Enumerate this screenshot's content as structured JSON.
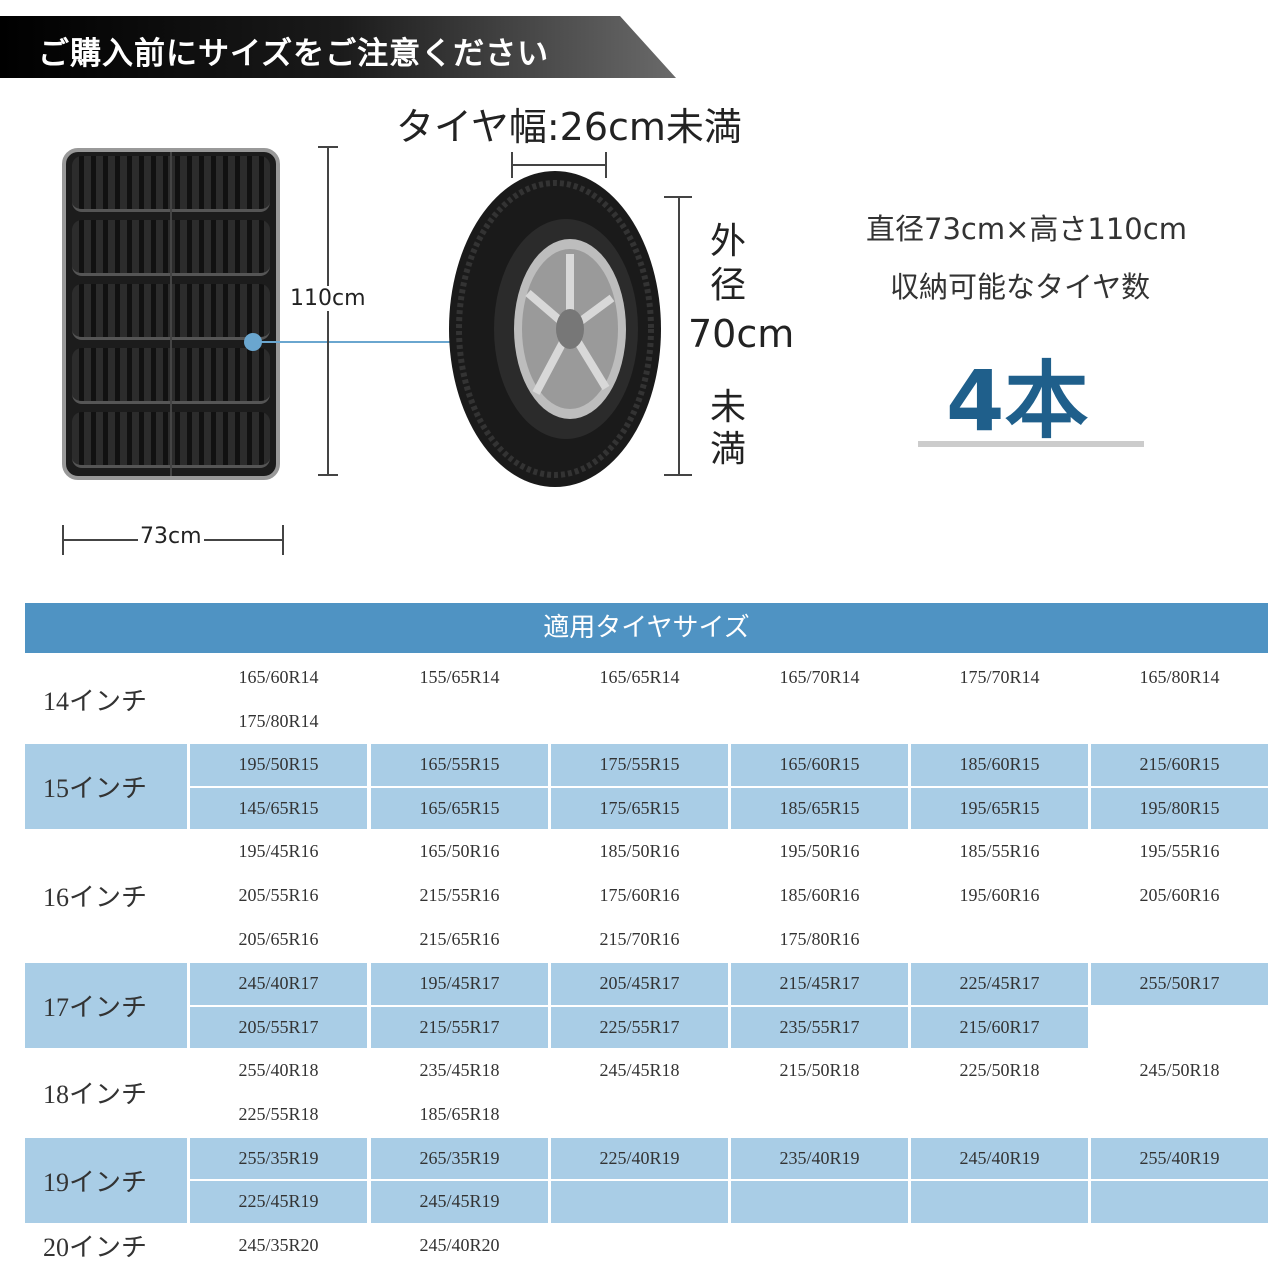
{
  "banner": {
    "text": "ご購入前にサイズをご注意ください"
  },
  "dims": {
    "bag_height": "110cm",
    "bag_width": "73cm",
    "tire_width": "タイヤ幅:26cm未満",
    "outer_label_1": "外",
    "outer_label_2": "径",
    "outer_value": "70cm",
    "outer_label_3": "未",
    "outer_label_4": "満"
  },
  "capacity": {
    "size_line": "直径73cm×高さ110cm",
    "label": "収納可能なタイヤ数",
    "count": "4本",
    "accent": "#1f5f8b"
  },
  "colors": {
    "header": "#4f93c3",
    "shaded": "#a9cde6"
  },
  "table": {
    "title": "適用タイヤサイズ",
    "rows": [
      {
        "label": "14インチ",
        "shaded": false,
        "lines": [
          [
            "165/60R14",
            "155/65R14",
            "165/65R14",
            "165/70R14",
            "175/70R14",
            "165/80R14"
          ],
          [
            "175/80R14"
          ]
        ]
      },
      {
        "label": "15インチ",
        "shaded": true,
        "lines": [
          [
            "195/50R15",
            "165/55R15",
            "175/55R15",
            "165/60R15",
            "185/60R15",
            "215/60R15"
          ],
          [
            "145/65R15",
            "165/65R15",
            "175/65R15",
            "185/65R15",
            "195/65R15",
            "195/80R15"
          ]
        ]
      },
      {
        "label": "16インチ",
        "shaded": false,
        "lines": [
          [
            "195/45R16",
            "165/50R16",
            "185/50R16",
            "195/50R16",
            "185/55R16",
            "195/55R16"
          ],
          [
            "205/55R16",
            "215/55R16",
            "175/60R16",
            "185/60R16",
            "195/60R16",
            "205/60R16"
          ],
          [
            "205/65R16",
            "215/65R16",
            "215/70R16",
            "175/80R16"
          ]
        ]
      },
      {
        "label": "17インチ",
        "shaded": true,
        "lines": [
          [
            "245/40R17",
            "195/45R17",
            "205/45R17",
            "215/45R17",
            "225/45R17",
            "255/50R17"
          ],
          [
            "205/55R17",
            "215/55R17",
            "225/55R17",
            "235/55R17",
            "215/60R17"
          ]
        ]
      },
      {
        "label": "18インチ",
        "shaded": false,
        "lines": [
          [
            "255/40R18",
            "235/45R18",
            "245/45R18",
            "215/50R18",
            "225/50R18",
            "245/50R18"
          ],
          [
            "225/55R18",
            "185/65R18"
          ]
        ]
      },
      {
        "label": "19インチ",
        "shaded": true,
        "lines": [
          [
            "255/35R19",
            "265/35R19",
            "225/40R19",
            "235/40R19",
            "245/40R19",
            "255/40R19"
          ],
          [
            "225/45R19",
            "245/45R19",
            "",
            "",
            "",
            ""
          ]
        ]
      },
      {
        "label": "20インチ",
        "shaded": false,
        "lines": [
          [
            "245/35R20",
            "245/40R20"
          ]
        ]
      }
    ]
  }
}
